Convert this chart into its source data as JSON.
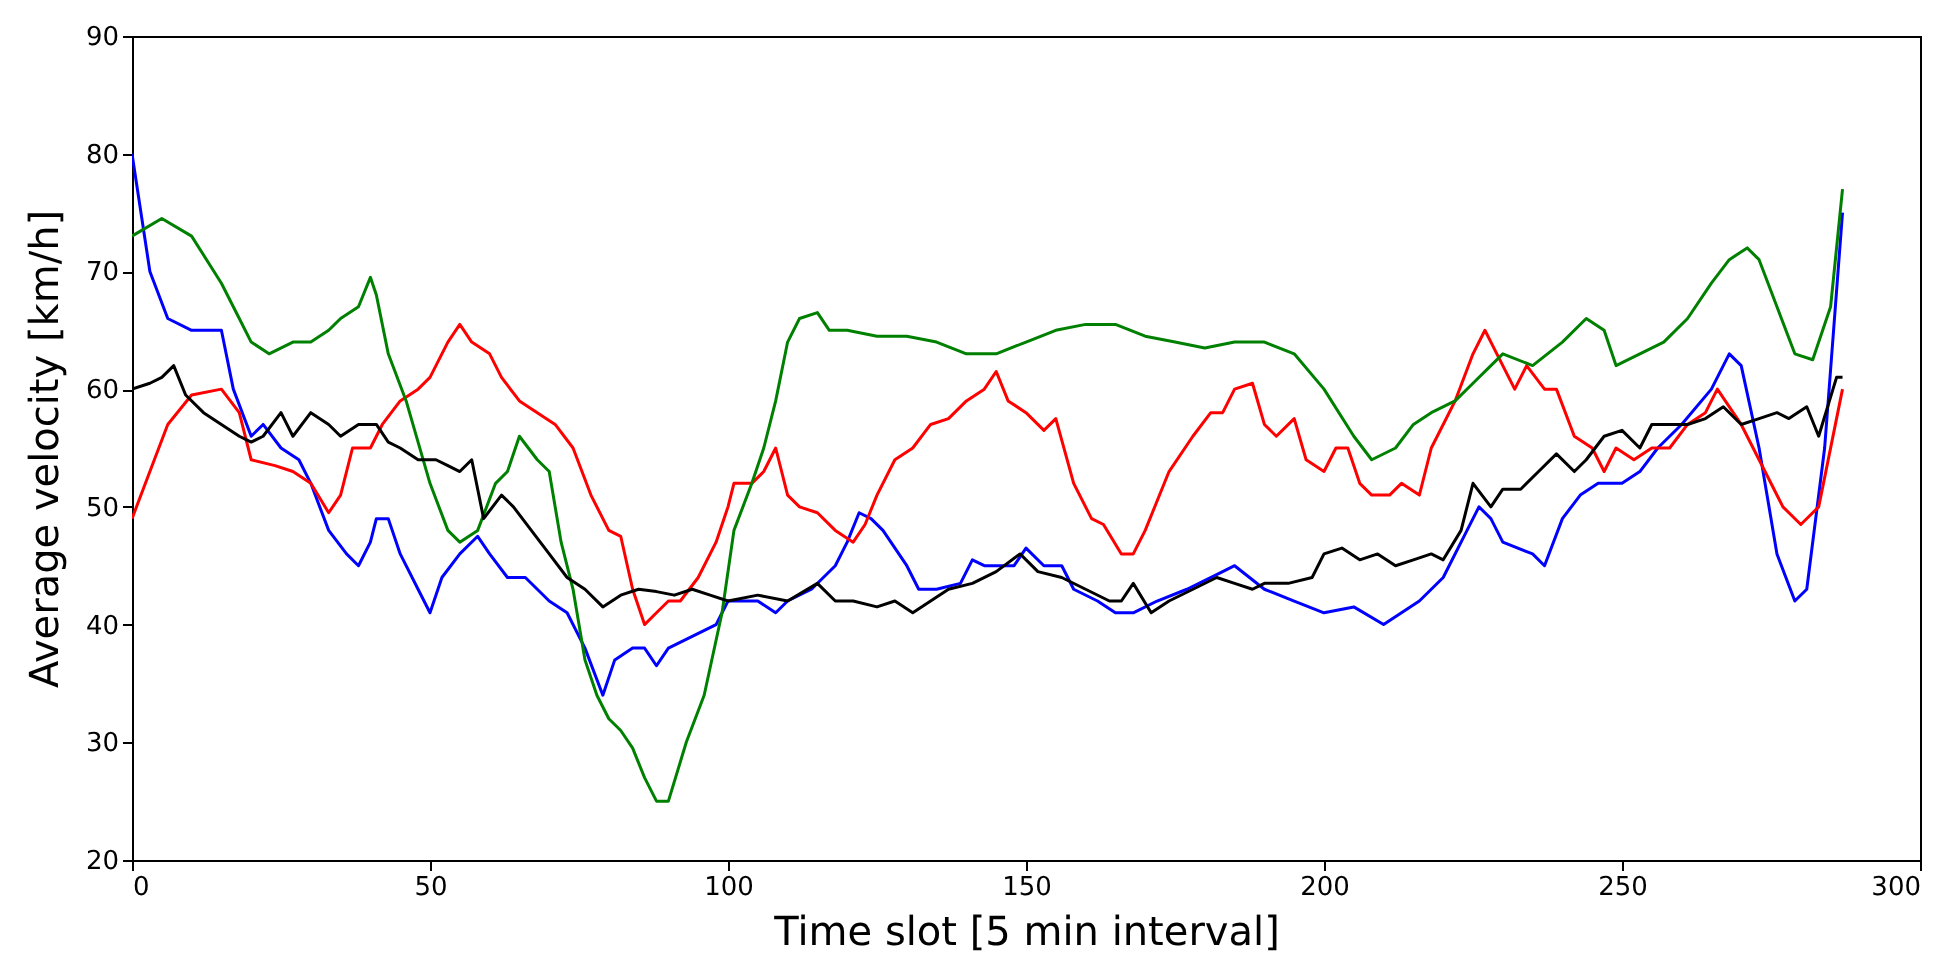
{
  "chart_data": {
    "type": "line",
    "xlabel": "Time slot [5 min interval]",
    "ylabel": "Average velocity [km/h]",
    "xlim": [
      0,
      300
    ],
    "xticks": [
      0,
      50,
      100,
      150,
      200,
      250,
      300
    ],
    "ylim": [
      20,
      90
    ],
    "yticks": [
      20,
      30,
      40,
      50,
      60,
      70,
      80,
      90
    ],
    "grid": false,
    "marker": "none",
    "line_style": "solid",
    "series": [
      {
        "color": "#0000ff",
        "x": [
          0,
          3,
          6,
          10,
          15,
          17,
          20,
          22,
          25,
          28,
          30,
          33,
          36,
          38,
          40,
          41,
          43,
          45,
          48,
          50,
          52,
          55,
          58,
          60,
          63,
          66,
          70,
          73,
          76,
          79,
          81,
          84,
          86,
          88,
          90,
          94,
          98,
          100,
          105,
          108,
          110,
          114,
          118,
          120,
          122,
          124,
          126,
          130,
          132,
          135,
          139,
          141,
          143,
          148,
          150,
          153,
          156,
          158,
          162,
          165,
          168,
          172,
          177,
          183,
          185,
          190,
          195,
          200,
          205,
          210,
          213,
          216,
          220,
          224,
          226,
          228,
          230,
          235,
          237,
          240,
          243,
          246,
          250,
          253,
          256,
          260,
          265,
          268,
          270,
          273,
          276,
          279,
          281,
          284,
          287
        ],
        "values": [
          80,
          70,
          66,
          65,
          65,
          60,
          56,
          57,
          55,
          54,
          52,
          48,
          46,
          45,
          47,
          49,
          49,
          46,
          43,
          41,
          44,
          46,
          47.5,
          46,
          44,
          44,
          42,
          41,
          38,
          34,
          37,
          38,
          38,
          36.5,
          38,
          39,
          40,
          42,
          42,
          41,
          42,
          43,
          45,
          47,
          49.5,
          49,
          48,
          45,
          43,
          43,
          43.5,
          45.5,
          45,
          45,
          46.5,
          45,
          45,
          43,
          42,
          41,
          41,
          42,
          43,
          44.5,
          45,
          43,
          42,
          41,
          41.5,
          40,
          41,
          42,
          44,
          48,
          50,
          49,
          47,
          46,
          45,
          49,
          51,
          52,
          52,
          53,
          55,
          57,
          60,
          63,
          62,
          55,
          46,
          42,
          43,
          55,
          75
        ]
      },
      {
        "color": "#ff0000",
        "x": [
          0,
          3,
          6,
          10,
          15,
          18,
          20,
          24,
          27,
          30,
          33,
          35,
          37,
          40,
          42,
          45,
          48,
          50,
          53,
          55,
          57,
          60,
          62,
          65,
          68,
          71,
          74,
          77,
          80,
          82,
          84,
          86,
          88,
          90,
          92,
          95,
          98,
          100,
          101,
          104,
          106,
          108,
          110,
          112,
          115,
          118,
          121,
          123,
          125,
          128,
          131,
          134,
          137,
          140,
          143,
          145,
          147,
          150,
          153,
          155,
          158,
          161,
          163,
          166,
          168,
          170,
          174,
          178,
          181,
          183,
          185,
          188,
          190,
          192,
          195,
          197,
          200,
          202,
          204,
          206,
          208,
          211,
          213,
          216,
          218,
          220,
          222,
          225,
          227,
          229,
          232,
          234,
          237,
          239,
          242,
          245,
          247,
          249,
          252,
          255,
          258,
          261,
          264,
          266,
          270,
          274,
          277,
          280,
          283,
          287
        ],
        "values": [
          49,
          53,
          57,
          59.5,
          60,
          58,
          54,
          53.5,
          53,
          52,
          49.5,
          51,
          55,
          55,
          57,
          59,
          60,
          61,
          64,
          65.5,
          64,
          63,
          61,
          59,
          58,
          57,
          55,
          51,
          48,
          47.5,
          43,
          40,
          41,
          42,
          42,
          44,
          47,
          50,
          52,
          52,
          53,
          55,
          51,
          50,
          49.5,
          48,
          47,
          48.5,
          51,
          54,
          55,
          57,
          57.5,
          59,
          60,
          61.5,
          59,
          58,
          56.5,
          57.5,
          52,
          49,
          48.5,
          46,
          46,
          48,
          53,
          56,
          58,
          58,
          60,
          60.5,
          57,
          56,
          57.5,
          54,
          53,
          55,
          55,
          52,
          51,
          51,
          52,
          51,
          55,
          57,
          59,
          63,
          65,
          63,
          60,
          62,
          60,
          60,
          56,
          55,
          53,
          55,
          54,
          55,
          55,
          57,
          58,
          60,
          57,
          53,
          50,
          48.5,
          50,
          60
        ]
      },
      {
        "color": "#008000",
        "x": [
          0,
          5,
          10,
          15,
          18,
          20,
          23,
          27,
          30,
          33,
          35,
          38,
          40,
          41,
          43,
          46,
          50,
          53,
          55,
          58,
          61,
          63,
          65,
          68,
          70,
          72,
          74,
          76,
          78,
          80,
          82,
          84,
          86,
          88,
          90,
          93,
          96,
          99,
          101,
          104,
          106,
          108,
          110,
          112,
          115,
          117,
          120,
          125,
          130,
          135,
          140,
          145,
          150,
          155,
          160,
          165,
          170,
          175,
          180,
          185,
          190,
          195,
          200,
          205,
          208,
          212,
          215,
          218,
          222,
          225,
          228,
          230,
          235,
          240,
          244,
          247,
          249,
          253,
          257,
          261,
          265,
          268,
          271,
          273,
          276,
          279,
          282,
          285,
          287
        ],
        "values": [
          73,
          74.5,
          73,
          69,
          66,
          64,
          63,
          64,
          64,
          65,
          66,
          67,
          69.5,
          68,
          63,
          59,
          52,
          48,
          47,
          48,
          52,
          53,
          56,
          54,
          53,
          47,
          43,
          37,
          34,
          32,
          31,
          29.5,
          27,
          25,
          25,
          30,
          34,
          41,
          48,
          52,
          55,
          59,
          64,
          66,
          66.5,
          65,
          65,
          64.5,
          64.5,
          64,
          63,
          63,
          64,
          65,
          65.5,
          65.5,
          64.5,
          64,
          63.5,
          64,
          64,
          63,
          60,
          56,
          54,
          55,
          57,
          58,
          59,
          60.5,
          62,
          63,
          62,
          64,
          66,
          65,
          62,
          63,
          64,
          66,
          69,
          71,
          72,
          71,
          67,
          63,
          62.5,
          67,
          77
        ]
      },
      {
        "color": "#000000",
        "x": [
          0,
          3,
          5,
          7,
          9,
          12,
          15,
          18,
          20,
          22,
          25,
          27,
          30,
          33,
          35,
          38,
          41,
          43,
          45,
          48,
          51,
          53,
          55,
          57,
          59,
          62,
          64,
          67,
          70,
          73,
          76,
          79,
          82,
          85,
          88,
          91,
          94,
          97,
          100,
          105,
          110,
          115,
          118,
          121,
          125,
          128,
          131,
          134,
          137,
          141,
          145,
          149,
          152,
          156,
          160,
          164,
          166,
          168,
          171,
          174,
          178,
          182,
          185,
          188,
          190,
          194,
          198,
          200,
          203,
          206,
          209,
          212,
          215,
          218,
          220,
          223,
          225,
          228,
          230,
          233,
          236,
          239,
          242,
          244,
          247,
          250,
          253,
          255,
          258,
          261,
          264,
          267,
          270,
          273,
          276,
          278,
          281,
          283,
          286,
          287
        ],
        "values": [
          60,
          60.5,
          61,
          62,
          59.5,
          58,
          57,
          56,
          55.5,
          56,
          58,
          56,
          58,
          57,
          56,
          57,
          57,
          55.5,
          55,
          54,
          54,
          53.5,
          53,
          54,
          49,
          51,
          50,
          48,
          46,
          44,
          43,
          41.5,
          42.5,
          43,
          42.8,
          42.5,
          43,
          42.5,
          42,
          42.5,
          42,
          43.5,
          42,
          42,
          41.5,
          42,
          41,
          42,
          43,
          43.5,
          44.5,
          46,
          44.5,
          44,
          43,
          42,
          42,
          43.5,
          41,
          42,
          43,
          44,
          43.5,
          43,
          43.5,
          43.5,
          44,
          46,
          46.5,
          45.5,
          46,
          45,
          45.5,
          46,
          45.5,
          48,
          52,
          50,
          51.5,
          51.5,
          53,
          54.5,
          53,
          54,
          56,
          56.5,
          55,
          57,
          57,
          57,
          57.5,
          58.5,
          57,
          57.5,
          58,
          57.5,
          58.5,
          56,
          61,
          61
        ]
      }
    ]
  }
}
